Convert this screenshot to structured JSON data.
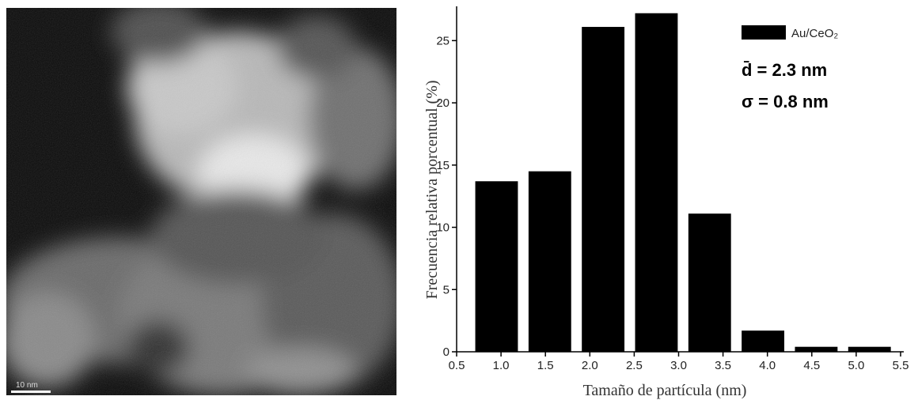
{
  "image": {
    "scale_label": "10 nm"
  },
  "chart_data": {
    "type": "bar",
    "x": [
      0.95,
      1.55,
      2.15,
      2.75,
      3.35,
      3.95,
      4.55,
      5.15
    ],
    "series": [
      {
        "name": "Au/CeO₂",
        "color": "#000000",
        "values": [
          13.7,
          14.5,
          26.1,
          27.2,
          11.1,
          1.7,
          0.4,
          0.4
        ]
      }
    ],
    "xlabel": "Tamaño de partícula (nm)",
    "ylabel": "Frecuencia relativa porcentual (%)",
    "annotations": [
      "d̄ = 2.3 nm",
      "σ = 0.8 nm"
    ],
    "xlim": [
      0.5,
      5.5
    ],
    "xticks": [
      0.5,
      {
        "value": 1,
        "label": "1.0"
      },
      1.5,
      {
        "value": 2,
        "label": "2.0"
      },
      2.5,
      {
        "value": 3,
        "label": "3.0"
      },
      3.5,
      {
        "value": 4,
        "label": "4.0"
      },
      4.5,
      {
        "value": 5,
        "label": "5.0"
      },
      5.5
    ],
    "ylim": [
      0,
      27.5
    ],
    "yticks": [
      0,
      5,
      10,
      15,
      20,
      25
    ],
    "legend": "upper right"
  }
}
